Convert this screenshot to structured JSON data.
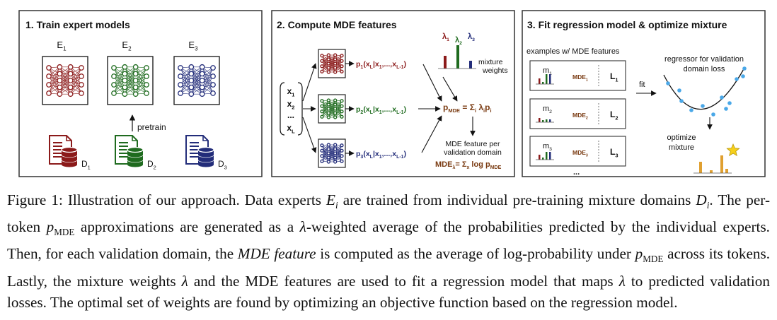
{
  "panels": {
    "p1": {
      "title": "1. Train expert models",
      "experts": [
        "E",
        "E",
        "E"
      ],
      "expert_subs": [
        "1",
        "2",
        "3"
      ],
      "pretrain_label": "pretrain",
      "domains": [
        "D",
        "D",
        "D"
      ],
      "domain_subs": [
        "1",
        "2",
        "3"
      ]
    },
    "p2": {
      "title": "2. Compute MDE features",
      "inputs": [
        "x",
        "x",
        "...",
        "x"
      ],
      "input_subs": [
        "1",
        "2",
        "",
        "L"
      ],
      "prob_prefix": "p",
      "prob_subs": [
        "1",
        "2",
        "3"
      ],
      "prob_args": "(x|x,...,x)",
      "lambda_subs": [
        "1",
        "2",
        "3"
      ],
      "mixture_weights": [
        "mixture",
        "weights"
      ],
      "pmde_formula": "p = Σ λp",
      "mde_feature_text": [
        "MDE feature per",
        "validation domain"
      ],
      "mde_formula": "MDE = Σ log p"
    },
    "p3": {
      "title": "3. Fit regression model & optimize mixture",
      "examples_label": "examples w/ MDE features",
      "example_m": [
        "m",
        "m",
        "m"
      ],
      "example_subs": [
        "1",
        "2",
        "3"
      ],
      "example_mde": "MDE",
      "example_loss": "L",
      "ellipsis": "...",
      "fit_label": "fit",
      "regressor_label": [
        "regressor for validation",
        "domain loss"
      ],
      "optimize_label": [
        "optimize",
        "mixture"
      ]
    }
  },
  "colors": {
    "red": "#8b1a1a",
    "green": "#1f6b1f",
    "blue": "#232d7a",
    "brown": "#7a3b12",
    "orange": "#e0a030",
    "star": "#f6d01a",
    "dots": "#4aa8e8"
  },
  "caption": {
    "s1": "Figure 1: Illustration of our approach. Data experts ",
    "s2": " are trained from individual pre-training mixture domains ",
    "s3": ". The per-token ",
    "s4": " approximations are generated as a ",
    "s5": "-weighted average of the probabilities predicted by the individual experts. Then, for each validation domain, the ",
    "s6": "MDE feature",
    "s7": " is computed as the average of log-probability under ",
    "s8": " across its tokens. Lastly, the mixture weights ",
    "s9": " and the MDE features are used to fit a regression model that maps ",
    "s10": " to predicted validation losses. The optimal set of weights are found by optimizing an objective function based on the regression model.",
    "e_sym": "E",
    "e_sub": "i",
    "d_sym": "D",
    "d_sub": "i",
    "p_sym": "p",
    "p_sub": "MDE",
    "lambda_sym": "λ"
  }
}
